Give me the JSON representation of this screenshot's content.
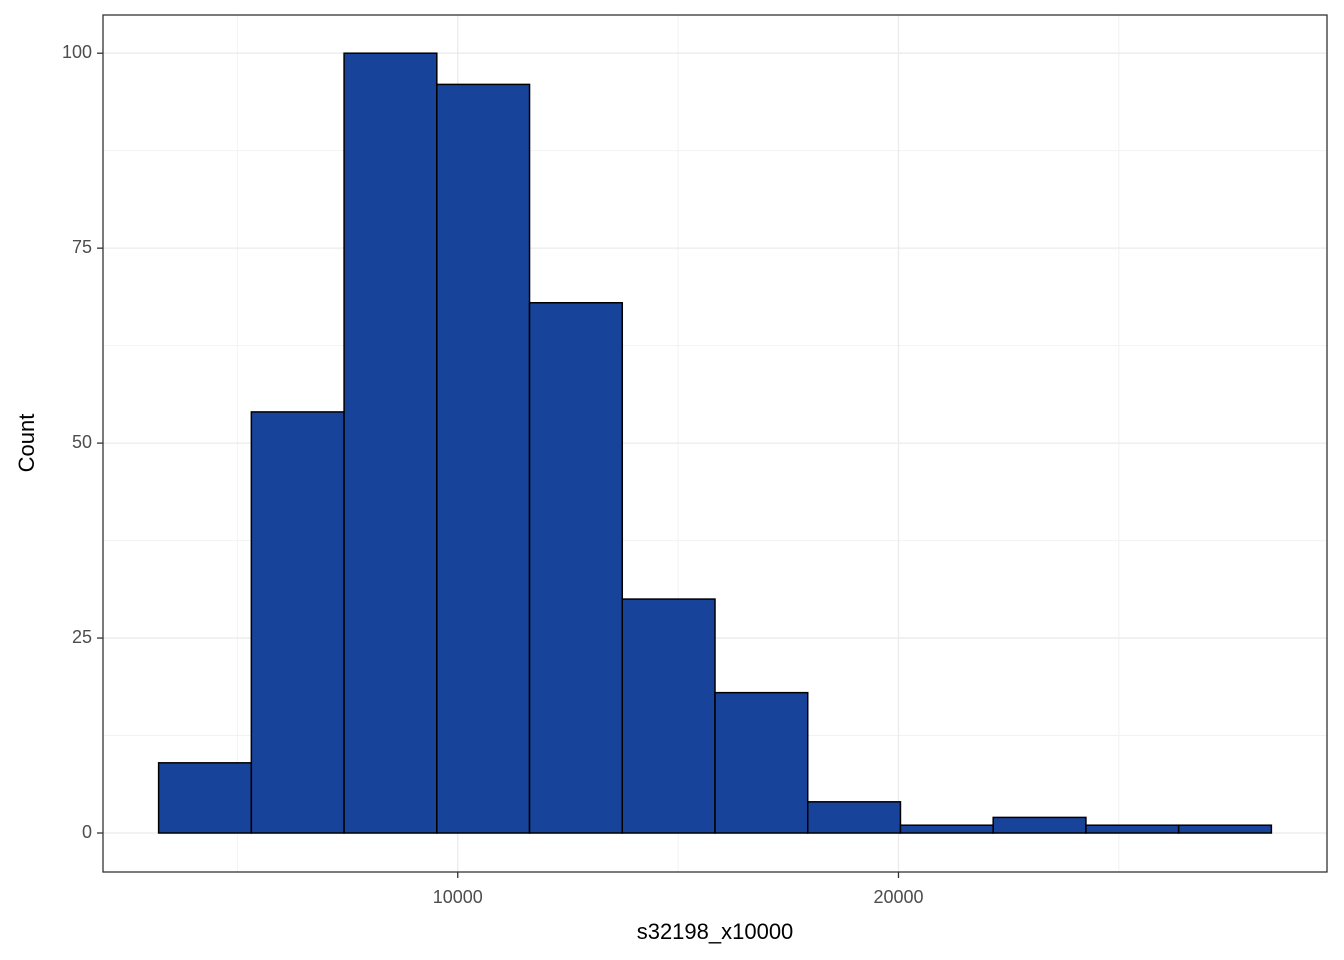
{
  "chart_data": {
    "type": "histogram",
    "x_label": "s32198_x10000",
    "y_label": "Count",
    "bins": [
      3213,
      5317,
      7421,
      9525,
      11629,
      13733,
      15837,
      17941,
      20045,
      22149,
      24253,
      26357,
      28461
    ],
    "values": [
      9,
      54,
      100,
      96,
      68,
      30,
      18,
      4,
      1,
      2,
      1,
      1
    ],
    "color": "#18439a",
    "edge_color": "#000000",
    "xlim": [
      1951,
      29723
    ],
    "xticks": [
      10000,
      20000
    ],
    "ylim": [
      -5,
      104.9
    ],
    "yticks": [
      0,
      25,
      50,
      75,
      100
    ],
    "grid": true
  }
}
